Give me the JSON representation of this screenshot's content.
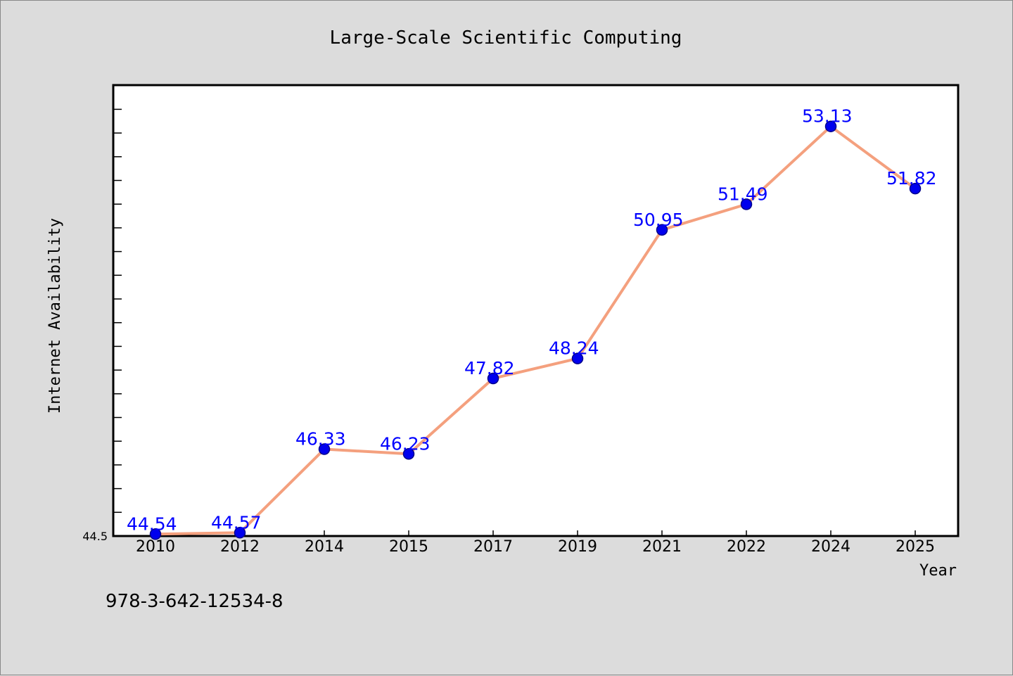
{
  "chart_data": {
    "type": "line",
    "title": "Large-Scale Scientific Computing",
    "xlabel": "Year",
    "ylabel": "Internet Availability",
    "categories": [
      "2010",
      "2012",
      "2014",
      "2015",
      "2017",
      "2019",
      "2021",
      "2022",
      "2024",
      "2025"
    ],
    "series": [
      {
        "values": [
          44.54,
          44.57,
          46.33,
          46.23,
          47.82,
          48.24,
          50.95,
          51.49,
          53.13,
          51.82
        ]
      }
    ],
    "data_labels": [
      "44.54",
      "44.57",
      "46.33",
      "46.23",
      "47.82",
      "48.24",
      "50.95",
      "51.49",
      "53.13",
      "51.82"
    ],
    "ylim": [
      44.5,
      54.0
    ],
    "ytick_labels": [
      "44.5"
    ],
    "grid": false,
    "footnote": "978-3-642-12534-8",
    "colors": {
      "line": "#f4a07e",
      "marker": "#0000ee",
      "marker_edge": "#00008b",
      "label": "#0000ff",
      "plot_bg": "#ffffff",
      "page_bg": "#dcdcdc"
    }
  }
}
